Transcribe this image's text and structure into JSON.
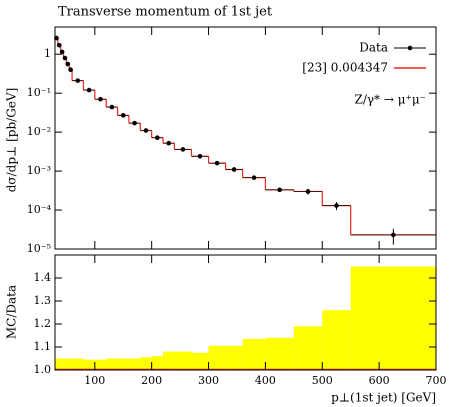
{
  "chart_data": [
    {
      "type": "histogram",
      "title": "Transverse momentum of 1st jet",
      "ylabel": "dσ/dp⊥ [pb/GeV]",
      "bins": [
        30,
        35,
        40,
        45,
        50,
        55,
        60,
        80,
        100,
        120,
        140,
        160,
        180,
        200,
        220,
        240,
        270,
        300,
        330,
        360,
        400,
        450,
        500,
        550,
        700
      ],
      "series": [
        {
          "name": "Data",
          "color": "#000000",
          "values": [
            2.6,
            1.7,
            1.15,
            0.8,
            0.56,
            0.4,
            0.21,
            0.12,
            0.07,
            0.044,
            0.027,
            0.017,
            0.011,
            0.0072,
            0.0052,
            0.0036,
            0.0024,
            0.0016,
            0.0011,
            0.00068,
            0.00033,
            0.0003,
            0.00013,
            2.3e-05
          ],
          "errors": [
            0.05,
            0.04,
            0.03,
            0.02,
            0.015,
            0.012,
            0.006,
            0.004,
            0.003,
            0.002,
            0.0012,
            0.0008,
            0.0006,
            0.0004,
            0.0003,
            0.0002,
            0.00015,
            0.0001,
            7e-05,
            5e-05,
            4e-05,
            5e-05,
            3e-05,
            1e-05
          ]
        },
        {
          "name": "[23] 0.004347",
          "color": "#e8281c",
          "values": [
            2.6,
            1.7,
            1.15,
            0.8,
            0.56,
            0.4,
            0.21,
            0.12,
            0.07,
            0.044,
            0.027,
            0.017,
            0.011,
            0.0072,
            0.0052,
            0.0036,
            0.0024,
            0.0016,
            0.0011,
            0.00068,
            0.00033,
            0.0003,
            0.00013,
            2.3e-05
          ]
        }
      ],
      "annotation": "Z/γ* → μ⁺μ⁻",
      "xlim": [
        30,
        700
      ],
      "xticks": [
        100,
        200,
        300,
        400,
        500,
        600,
        700
      ],
      "ylim": [
        1e-05,
        5
      ],
      "log_y": true,
      "yticks": [
        {
          "value": 1e-05,
          "label": "10⁻⁵"
        },
        {
          "value": 0.0001,
          "label": "10⁻⁴"
        },
        {
          "value": 0.001,
          "label": "10⁻³"
        },
        {
          "value": 0.01,
          "label": "10⁻²"
        },
        {
          "value": 0.1,
          "label": "10⁻¹"
        },
        1
      ],
      "legend": "top-right"
    },
    {
      "type": "ratio",
      "ylabel": "MC/Data",
      "xlabel": "p⊥(1st jet) [GeV]",
      "band": {
        "color": "#ffff00",
        "values": [
          1.05,
          1.05,
          1.05,
          1.05,
          1.05,
          1.05,
          1.05,
          1.045,
          1.045,
          1.05,
          1.05,
          1.05,
          1.055,
          1.06,
          1.08,
          1.08,
          1.075,
          1.105,
          1.105,
          1.135,
          1.14,
          1.19,
          1.26,
          1.45
        ]
      },
      "mc": {
        "color": "#e8281c",
        "values": [
          1,
          1,
          1,
          1,
          1,
          1,
          1,
          1,
          1,
          1,
          1,
          1,
          1,
          1,
          1,
          1,
          1,
          1,
          1,
          1,
          1,
          1,
          1,
          1
        ]
      },
      "ylim": [
        1.0,
        1.5
      ],
      "yticks": [
        {
          "value": 1.0,
          "label": "1.0"
        },
        1.1,
        1.2,
        1.3,
        1.4
      ]
    }
  ]
}
